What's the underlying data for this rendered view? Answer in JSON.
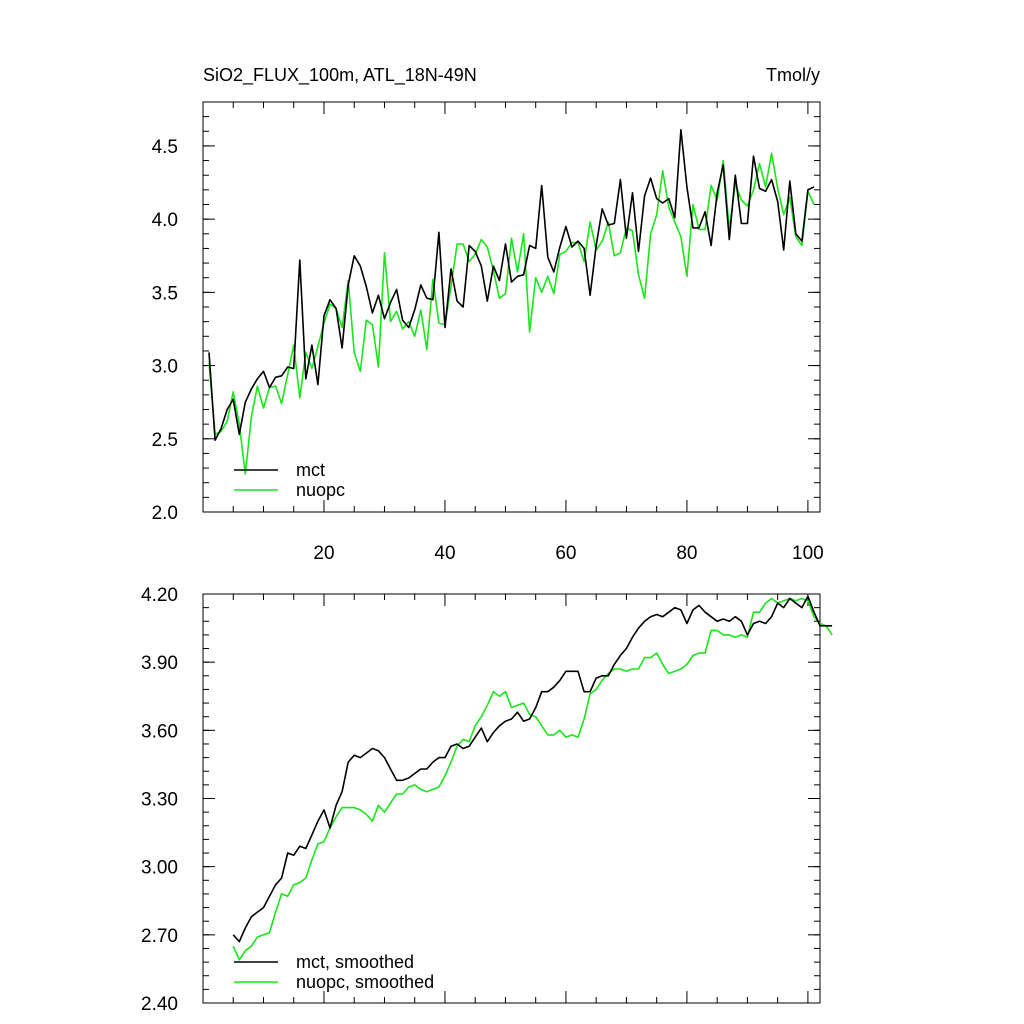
{
  "chart_data": [
    {
      "type": "line",
      "title": "SiO2_FLUX_100m, ATL_18N-49N",
      "units_label": "Tmol/y",
      "xlabel": "",
      "ylabel": "",
      "xlim": [
        0,
        102
      ],
      "ylim": [
        2.0,
        4.8
      ],
      "xticks": [
        20,
        40,
        60,
        80,
        100
      ],
      "xtick_labels": [
        "20",
        "40",
        "60",
        "80",
        "100"
      ],
      "yticks": [
        2.0,
        2.5,
        3.0,
        3.5,
        4.0,
        4.5
      ],
      "ytick_labels": [
        "2.0",
        "2.5",
        "3.0",
        "3.5",
        "4.0",
        "4.5"
      ],
      "grid": false,
      "legend_position": "bottom-left",
      "series": [
        {
          "name": "mct",
          "color": "#000000",
          "x_start": 1,
          "values": [
            3.09,
            2.49,
            2.57,
            2.7,
            2.77,
            2.53,
            2.75,
            2.84,
            2.91,
            2.96,
            2.85,
            2.92,
            2.93,
            2.99,
            2.98,
            3.72,
            2.91,
            3.14,
            2.87,
            3.34,
            3.45,
            3.39,
            3.12,
            3.55,
            3.75,
            3.68,
            3.54,
            3.36,
            3.48,
            3.32,
            3.43,
            3.52,
            3.31,
            3.26,
            3.38,
            3.55,
            3.46,
            3.45,
            3.91,
            3.26,
            3.66,
            3.44,
            3.4,
            3.82,
            3.78,
            3.68,
            3.44,
            3.68,
            3.58,
            3.83,
            3.57,
            3.61,
            3.62,
            3.82,
            3.8,
            4.23,
            3.74,
            3.64,
            3.81,
            3.95,
            3.81,
            3.85,
            3.8,
            3.48,
            3.82,
            4.07,
            3.96,
            3.97,
            4.27,
            3.87,
            4.18,
            3.78,
            4.16,
            4.28,
            4.14,
            4.11,
            4.14,
            4.01,
            4.61,
            4.22,
            3.94,
            3.94,
            4.05,
            3.82,
            4.18,
            4.37,
            3.86,
            4.3,
            3.97,
            3.97,
            4.43,
            4.21,
            4.19,
            4.27,
            4.12,
            3.79,
            4.26,
            3.9,
            3.85,
            4.2,
            4.22
          ]
        },
        {
          "name": "nuopc",
          "color": "#19e619",
          "x_start": 1,
          "values": [
            3.02,
            2.53,
            2.55,
            2.62,
            2.82,
            2.6,
            2.26,
            2.65,
            2.86,
            2.71,
            2.85,
            2.86,
            2.74,
            2.94,
            3.14,
            2.78,
            3.09,
            2.98,
            3.13,
            3.29,
            3.42,
            3.39,
            3.26,
            3.58,
            3.09,
            2.96,
            3.31,
            3.28,
            2.99,
            3.77,
            3.3,
            3.37,
            3.25,
            3.3,
            3.2,
            3.38,
            3.11,
            3.59,
            3.29,
            3.28,
            3.54,
            3.83,
            3.83,
            3.71,
            3.76,
            3.86,
            3.81,
            3.65,
            3.46,
            3.49,
            3.87,
            3.64,
            3.9,
            3.23,
            3.6,
            3.5,
            3.61,
            3.49,
            3.76,
            3.78,
            3.84,
            3.84,
            3.71,
            3.98,
            3.79,
            3.85,
            3.98,
            3.75,
            3.77,
            3.94,
            3.92,
            3.62,
            3.46,
            3.9,
            4.03,
            4.33,
            4.08,
            3.98,
            3.88,
            3.61,
            4.1,
            3.93,
            3.93,
            4.23,
            4.13,
            4.4,
            3.93,
            4.24,
            4.13,
            4.09,
            4.2,
            4.38,
            4.22,
            4.45,
            4.21,
            4.03,
            4.15,
            3.88,
            3.82,
            4.19,
            4.1
          ]
        }
      ]
    },
    {
      "type": "line",
      "title": "",
      "xlabel": "",
      "ylabel": "",
      "xlim": [
        0,
        102
      ],
      "ylim": [
        2.4,
        4.2
      ],
      "xticks": [
        20,
        40,
        60,
        80,
        100
      ],
      "yticks": [
        2.4,
        2.7,
        3.0,
        3.3,
        3.6,
        3.9,
        4.2
      ],
      "ytick_labels": [
        "2.40",
        "2.70",
        "3.00",
        "3.30",
        "3.60",
        "3.90",
        "4.20"
      ],
      "grid": false,
      "legend_position": "bottom-left",
      "series": [
        {
          "name": "mct, smoothed",
          "color": "#000000",
          "x_start": 5,
          "values": [
            2.7,
            2.67,
            2.73,
            2.78,
            2.8,
            2.82,
            2.87,
            2.92,
            2.95,
            3.06,
            3.05,
            3.09,
            3.08,
            3.14,
            3.2,
            3.25,
            3.17,
            3.27,
            3.33,
            3.46,
            3.49,
            3.48,
            3.5,
            3.52,
            3.51,
            3.48,
            3.43,
            3.38,
            3.38,
            3.39,
            3.41,
            3.43,
            3.43,
            3.46,
            3.48,
            3.48,
            3.53,
            3.54,
            3.52,
            3.53,
            3.57,
            3.61,
            3.55,
            3.59,
            3.62,
            3.64,
            3.65,
            3.68,
            3.64,
            3.65,
            3.7,
            3.77,
            3.77,
            3.79,
            3.82,
            3.86,
            3.86,
            3.86,
            3.77,
            3.77,
            3.83,
            3.84,
            3.84,
            3.89,
            3.93,
            3.96,
            4.01,
            4.05,
            4.08,
            4.1,
            4.11,
            4.1,
            4.12,
            4.14,
            4.13,
            4.07,
            4.13,
            4.15,
            4.12,
            4.1,
            4.08,
            4.09,
            4.08,
            4.1,
            4.08,
            4.02,
            4.07,
            4.08,
            4.07,
            4.1,
            4.16,
            4.14,
            4.18,
            4.16,
            4.14,
            4.19,
            4.12,
            4.06,
            4.06,
            4.06
          ]
        },
        {
          "name": "nuopc, smoothed",
          "color": "#19e619",
          "x_start": 5,
          "values": [
            2.65,
            2.59,
            2.63,
            2.65,
            2.69,
            2.7,
            2.71,
            2.8,
            2.88,
            2.87,
            2.92,
            2.93,
            2.95,
            3.03,
            3.1,
            3.11,
            3.17,
            3.22,
            3.26,
            3.26,
            3.26,
            3.25,
            3.23,
            3.2,
            3.27,
            3.24,
            3.28,
            3.32,
            3.32,
            3.35,
            3.36,
            3.34,
            3.33,
            3.34,
            3.35,
            3.4,
            3.46,
            3.53,
            3.56,
            3.55,
            3.62,
            3.66,
            3.71,
            3.77,
            3.75,
            3.77,
            3.7,
            3.71,
            3.72,
            3.67,
            3.66,
            3.62,
            3.58,
            3.58,
            3.6,
            3.57,
            3.58,
            3.57,
            3.65,
            3.76,
            3.78,
            3.82,
            3.85,
            3.87,
            3.87,
            3.86,
            3.87,
            3.87,
            3.92,
            3.92,
            3.94,
            3.89,
            3.85,
            3.86,
            3.87,
            3.89,
            3.93,
            3.94,
            3.94,
            4.04,
            4.04,
            4.02,
            4.02,
            4.01,
            4.02,
            4.01,
            4.12,
            4.12,
            4.16,
            4.18,
            4.16,
            4.17,
            4.18,
            4.17,
            4.18,
            4.17,
            4.1,
            4.07,
            4.06,
            4.02
          ]
        }
      ]
    }
  ]
}
